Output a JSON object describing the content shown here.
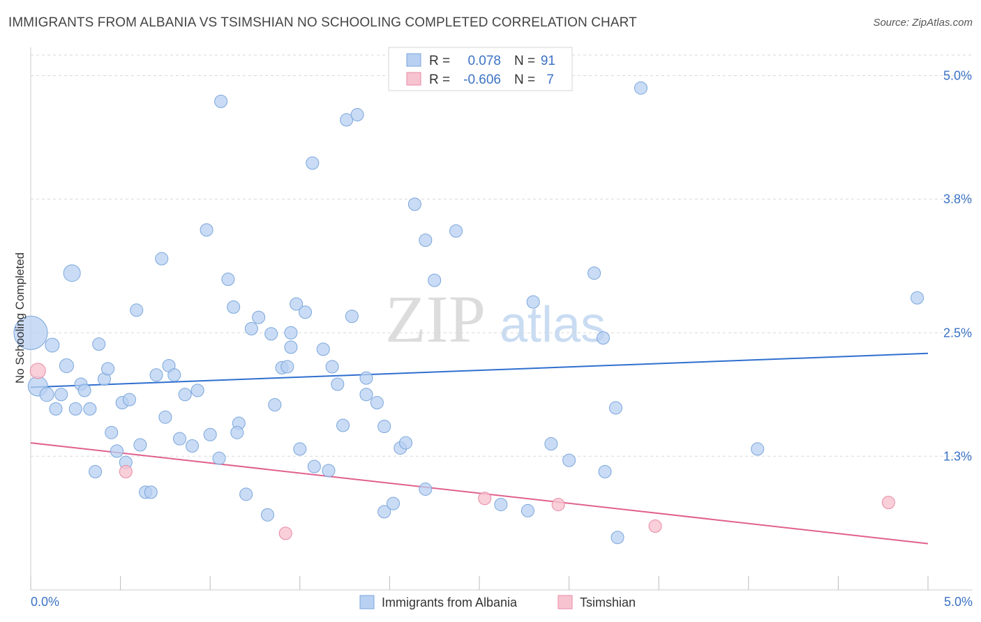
{
  "title": "IMMIGRANTS FROM ALBANIA VS TSIMSHIAN NO SCHOOLING COMPLETED CORRELATION CHART",
  "source": "Source: ZipAtlas.com",
  "watermark": {
    "zip": "ZIP",
    "atlas": "atlas"
  },
  "colors": {
    "blue_fill": "#b8d0f2",
    "blue_stroke": "#7aa6dc",
    "blue_line": "#2f6fcf",
    "pink_fill": "#f7c3d0",
    "pink_stroke": "#e88aa4",
    "pink_line": "#e0608e",
    "tick_label": "#3b73c4",
    "grid": "#d8d8d8"
  },
  "legend": {
    "rows": [
      {
        "r_label": "R =",
        "r_value": "0.078",
        "n_label": "N =",
        "n_value": "91"
      },
      {
        "r_label": "R =",
        "r_value": "-0.606",
        "n_label": "N =",
        "n_value": "7"
      }
    ]
  },
  "bottom_legend": {
    "series1": "Immigrants from Albania",
    "series2": "Tsimshian"
  },
  "chart_data": {
    "type": "scatter",
    "title": "IMMIGRANTS FROM ALBANIA VS TSIMSHIAN NO SCHOOLING COMPLETED CORRELATION CHART",
    "xlabel": "",
    "ylabel": "No Schooling Completed",
    "xlim": [
      0,
      5.0
    ],
    "ylim": [
      0,
      5.2
    ],
    "x_tick_labels": [
      "0.0%",
      "5.0%"
    ],
    "y_ticks": [
      1.3,
      2.5,
      3.8,
      5.0
    ],
    "y_tick_labels": [
      "1.3%",
      "2.5%",
      "3.8%",
      "5.0%"
    ],
    "grid": true,
    "series": [
      {
        "name": "Immigrants from Albania",
        "r": 0.078,
        "n": 91,
        "trend": [
          [
            0,
            1.97
          ],
          [
            5.0,
            2.3
          ]
        ],
        "points": [
          [
            0.0,
            2.5,
            24
          ],
          [
            0.04,
            1.98,
            14
          ],
          [
            0.09,
            1.9,
            10
          ],
          [
            0.12,
            2.38,
            10
          ],
          [
            0.14,
            1.76,
            9
          ],
          [
            0.17,
            1.9,
            9
          ],
          [
            0.2,
            2.18,
            10
          ],
          [
            0.23,
            3.08,
            12
          ],
          [
            0.25,
            1.76,
            9
          ],
          [
            0.28,
            2.0,
            9
          ],
          [
            0.3,
            1.94,
            9
          ],
          [
            0.33,
            1.76,
            9
          ],
          [
            0.36,
            1.15,
            9
          ],
          [
            0.38,
            2.39,
            9
          ],
          [
            0.41,
            2.05,
            9
          ],
          [
            0.43,
            2.15,
            9
          ],
          [
            0.45,
            1.53,
            9
          ],
          [
            0.48,
            1.35,
            9
          ],
          [
            0.51,
            1.82,
            9
          ],
          [
            0.53,
            1.24,
            9
          ],
          [
            0.55,
            1.85,
            9
          ],
          [
            0.59,
            2.72,
            9
          ],
          [
            0.61,
            1.41,
            9
          ],
          [
            0.64,
            0.95,
            9
          ],
          [
            0.67,
            0.95,
            9
          ],
          [
            0.7,
            2.09,
            9
          ],
          [
            0.73,
            3.22,
            9
          ],
          [
            0.75,
            1.68,
            9
          ],
          [
            0.77,
            2.18,
            9
          ],
          [
            0.8,
            2.09,
            9
          ],
          [
            0.83,
            1.47,
            9
          ],
          [
            0.86,
            1.9,
            9
          ],
          [
            0.9,
            1.4,
            9
          ],
          [
            0.93,
            1.94,
            9
          ],
          [
            0.98,
            3.5,
            9
          ],
          [
            1.0,
            1.51,
            9
          ],
          [
            1.05,
            1.28,
            9
          ],
          [
            1.1,
            3.02,
            9
          ],
          [
            1.13,
            2.75,
            9
          ],
          [
            1.16,
            1.62,
            9
          ],
          [
            1.2,
            0.93,
            9
          ],
          [
            1.23,
            2.54,
            9
          ],
          [
            1.27,
            2.65,
            9
          ],
          [
            1.32,
            0.73,
            9
          ],
          [
            1.34,
            2.49,
            9
          ],
          [
            1.36,
            1.8,
            9
          ],
          [
            1.4,
            2.16,
            9
          ],
          [
            1.43,
            2.17,
            9
          ],
          [
            1.45,
            2.5,
            9
          ],
          [
            1.48,
            2.78,
            9
          ],
          [
            1.5,
            1.37,
            9
          ],
          [
            1.53,
            2.7,
            9
          ],
          [
            1.57,
            4.15,
            9
          ],
          [
            1.58,
            1.2,
            9
          ],
          [
            1.63,
            2.34,
            9
          ],
          [
            1.66,
            1.16,
            9
          ],
          [
            1.68,
            2.17,
            9
          ],
          [
            1.71,
            2.0,
            9
          ],
          [
            1.74,
            1.6,
            9
          ],
          [
            1.76,
            4.57,
            9
          ],
          [
            1.79,
            2.66,
            9
          ],
          [
            1.87,
            2.06,
            9
          ],
          [
            1.87,
            1.9,
            9
          ],
          [
            1.93,
            1.82,
            9
          ],
          [
            1.97,
            1.59,
            9
          ],
          [
            1.97,
            0.76,
            9
          ],
          [
            2.02,
            0.84,
            9
          ],
          [
            2.06,
            1.38,
            9
          ],
          [
            2.09,
            1.43,
            9
          ],
          [
            2.14,
            3.75,
            9
          ],
          [
            2.2,
            3.4,
            9
          ],
          [
            2.25,
            3.01,
            9
          ],
          [
            2.2,
            0.98,
            9
          ],
          [
            2.37,
            3.49,
            9
          ],
          [
            2.62,
            0.83,
            9
          ],
          [
            2.77,
            0.77,
            9
          ],
          [
            2.8,
            2.8,
            9
          ],
          [
            2.9,
            1.42,
            9
          ],
          [
            3.0,
            1.26,
            9
          ],
          [
            3.14,
            3.08,
            9
          ],
          [
            3.19,
            2.45,
            9
          ],
          [
            3.2,
            1.15,
            9
          ],
          [
            3.26,
            1.77,
            9
          ],
          [
            3.27,
            0.51,
            9
          ],
          [
            3.4,
            4.88,
            9
          ],
          [
            4.05,
            1.37,
            9
          ],
          [
            4.94,
            2.84,
            9
          ],
          [
            1.06,
            4.75,
            9
          ],
          [
            1.82,
            4.62,
            9
          ],
          [
            1.45,
            2.36,
            9
          ],
          [
            1.15,
            1.53,
            9
          ]
        ]
      },
      {
        "name": "Tsimshian",
        "r": -0.606,
        "n": 7,
        "trend": [
          [
            0,
            1.43
          ],
          [
            5.0,
            0.45
          ]
        ],
        "points": [
          [
            0.04,
            2.13,
            11
          ],
          [
            0.53,
            1.15,
            9
          ],
          [
            1.42,
            0.55,
            9
          ],
          [
            2.53,
            0.89,
            9
          ],
          [
            2.94,
            0.83,
            9
          ],
          [
            3.48,
            0.62,
            9
          ],
          [
            4.78,
            0.85,
            9
          ]
        ]
      }
    ]
  }
}
